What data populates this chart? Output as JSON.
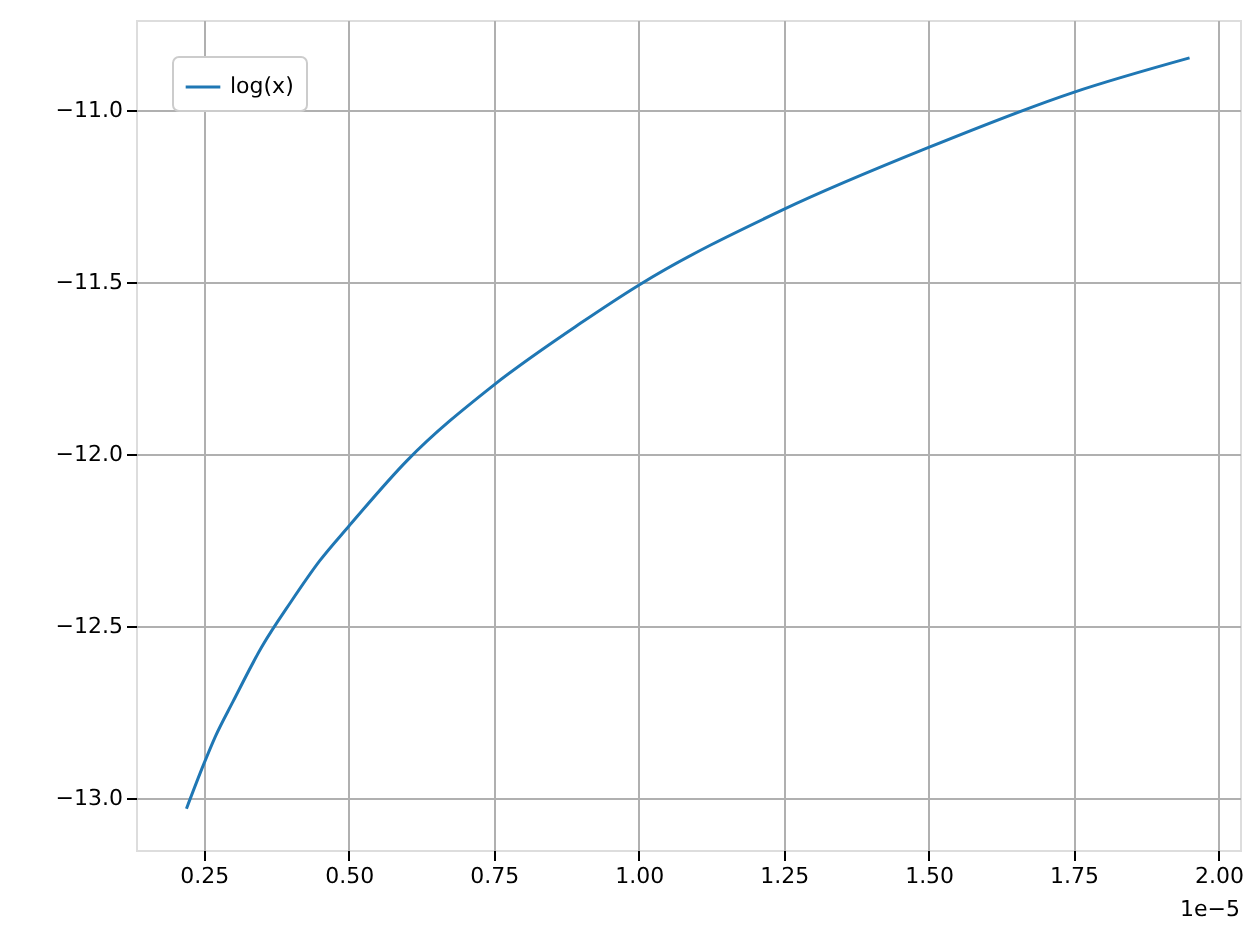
{
  "chart_data": {
    "type": "line",
    "x": [
      0.22,
      0.25,
      0.27,
      0.3,
      0.35,
      0.4,
      0.45,
      0.5,
      0.6,
      0.75,
      0.9,
      1.0,
      1.25,
      1.5,
      1.75,
      1.95
    ],
    "series": [
      {
        "name": "log(x)",
        "color": "#1f77b4",
        "values": [
          -13.03,
          -12.9,
          -12.82,
          -12.72,
          -12.56,
          -12.43,
          -12.31,
          -12.21,
          -12.02,
          -11.8,
          -11.62,
          -11.51,
          -11.29,
          -11.11,
          -10.95,
          -10.85
        ]
      }
    ],
    "xlim": [
      0.133,
      2.037
    ],
    "ylim": [
      -13.15,
      -10.74
    ],
    "xticks": [
      {
        "value": 0.25,
        "label": "0.25"
      },
      {
        "value": 0.5,
        "label": "0.50"
      },
      {
        "value": 0.75,
        "label": "0.75"
      },
      {
        "value": 1.0,
        "label": "1.00"
      },
      {
        "value": 1.25,
        "label": "1.25"
      },
      {
        "value": 1.5,
        "label": "1.50"
      },
      {
        "value": 1.75,
        "label": "1.75"
      },
      {
        "value": 2.0,
        "label": "2.00"
      }
    ],
    "yticks": [
      {
        "value": -13.0,
        "label": "−13.0"
      },
      {
        "value": -12.5,
        "label": "−12.5"
      },
      {
        "value": -12.0,
        "label": "−12.0"
      },
      {
        "value": -11.5,
        "label": "−11.5"
      },
      {
        "value": -11.0,
        "label": "−11.0"
      }
    ],
    "annotations": [
      "1e−5"
    ],
    "grid": true,
    "legend": "top left",
    "marker": "none",
    "line_style": "solid"
  }
}
